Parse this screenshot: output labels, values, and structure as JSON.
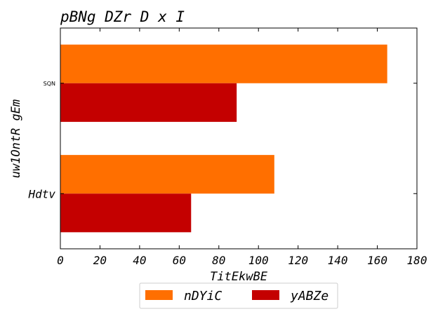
{
  "chart_data": {
    "type": "bar",
    "orientation": "horizontal",
    "title": "pBNg DZr D x I",
    "xlabel": "TitEkwBE",
    "ylabel": "uw1OntR gEm",
    "categories": [
      "Hdtv",
      "SQN"
    ],
    "series": [
      {
        "name": "nDYiC",
        "values": [
          108,
          165
        ],
        "color": "#ff6f00"
      },
      {
        "name": "yABZe",
        "values": [
          66,
          89
        ],
        "color": "#c40000"
      }
    ],
    "xlim": [
      0,
      180
    ],
    "xticks": [
      "0",
      "20",
      "40",
      "60",
      "80",
      "100",
      "120",
      "140",
      "160",
      "180"
    ],
    "grid": false,
    "legend_position": "bottom-center"
  }
}
